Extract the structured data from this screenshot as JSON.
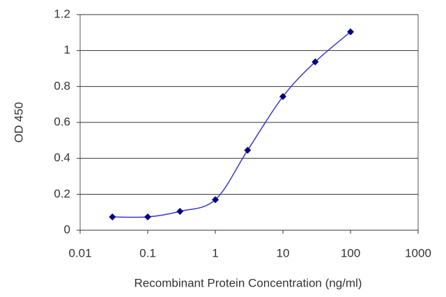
{
  "chart_data": {
    "type": "line",
    "x_label": "Recombinant Protein Concentration (ng/ml)",
    "y_label": "OD 450",
    "x": [
      0.03,
      0.1,
      0.3,
      1,
      3,
      10,
      30,
      100
    ],
    "series": [
      {
        "name": "OD 450",
        "color": "#3a3ac8",
        "marker_color": "#000080",
        "values": [
          0.074,
          0.074,
          0.105,
          0.17,
          0.445,
          0.744,
          0.937,
          1.104
        ]
      }
    ],
    "xlim": [
      0.01,
      1000
    ],
    "xticks": [
      0.01,
      0.1,
      1,
      10,
      100,
      1000
    ],
    "xscale": "log",
    "ylim": [
      0,
      1.2
    ],
    "yticks": [
      0,
      0.2,
      0.4,
      0.6,
      0.8,
      1,
      1.2
    ],
    "grid": true
  }
}
